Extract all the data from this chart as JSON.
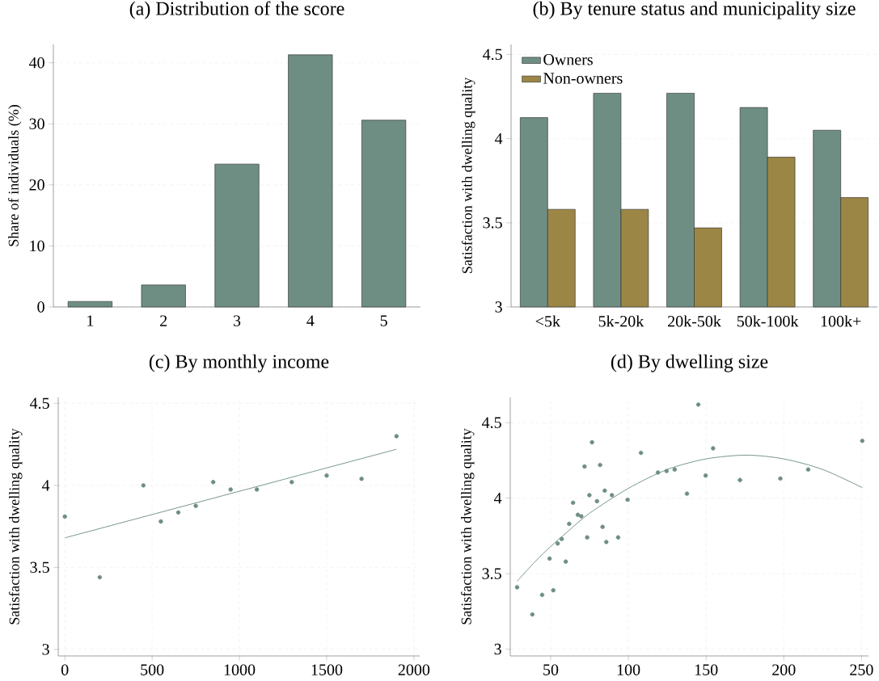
{
  "chart_data": [
    {
      "type": "bar",
      "title": "(a) Distribution of the score",
      "ylabel": "Share of individuals (%)",
      "categories": [
        "1",
        "2",
        "3",
        "4",
        "5"
      ],
      "values": [
        0.9,
        3.6,
        23.4,
        41.3,
        30.6
      ],
      "color": "#6e8e84",
      "ylim": [
        0,
        43
      ],
      "yticks": [
        0,
        10,
        20,
        30,
        40
      ],
      "grid": "y"
    },
    {
      "type": "bar",
      "title": "(b) By tenure status and municipality size",
      "ylabel": "Satisfaction with dwelling quality",
      "categories": [
        "<5k",
        "5k-20k",
        "20k-50k",
        "50k-100k",
        "100k+"
      ],
      "series": [
        {
          "name": "Owners",
          "color": "#6e8e84",
          "values": [
            4.125,
            4.27,
            4.27,
            4.185,
            4.05
          ]
        },
        {
          "name": "Non-owners",
          "color": "#9c8645",
          "values": [
            3.58,
            3.58,
            3.47,
            3.89,
            3.65
          ]
        }
      ],
      "ylim": [
        3,
        4.56
      ],
      "yticks": [
        3,
        3.5,
        4,
        4.5
      ],
      "grid": "y",
      "legend": "top left"
    },
    {
      "type": "scatter",
      "title": "(c) By monthly income",
      "ylabel": "Satisfaction with dwelling quality",
      "series": [
        {
          "type": "scatter",
          "marker": "circle",
          "color": "#6e8e84",
          "x": [
            0,
            200,
            450,
            550,
            650,
            750,
            850,
            950,
            1100,
            1300,
            1500,
            1700,
            1900
          ],
          "values": [
            3.81,
            3.44,
            4.0,
            3.78,
            3.835,
            3.875,
            4.02,
            3.975,
            3.975,
            4.02,
            4.06,
            4.04,
            4.3
          ]
        },
        {
          "type": "line",
          "marker": "none",
          "color": "#6e8e84",
          "x": [
            0,
            1900
          ],
          "values": [
            3.68,
            4.22
          ]
        }
      ],
      "xlim": [
        -38,
        2033
      ],
      "ylim": [
        2.96,
        4.536
      ],
      "xticks": [
        0,
        500,
        1000,
        1500,
        2000
      ],
      "yticks": [
        3,
        3.5,
        4,
        4.5
      ],
      "grid": true
    },
    {
      "type": "scatter",
      "title": "(d) By dwelling size",
      "ylabel": "Satisfaction with dwelling quality",
      "series": [
        {
          "type": "scatter",
          "marker": "circle",
          "color": "#6e8e84",
          "x": [
            28.4,
            38.2,
            44.5,
            49.3,
            51.7,
            54.5,
            57.1,
            59.7,
            61.9,
            64.4,
            67.5,
            69.7,
            71.8,
            73.5,
            74.9,
            76.6,
            79.8,
            81.8,
            83.4,
            84.8,
            85.8,
            89.4,
            93.4,
            99.5,
            108.1,
            119.0,
            124.6,
            129.8,
            137.7,
            145.0,
            149.7,
            154.5,
            171.8,
            197.8,
            215.7,
            250.5
          ],
          "values": [
            3.41,
            3.23,
            3.36,
            3.6,
            3.39,
            3.7,
            3.73,
            3.58,
            3.83,
            3.97,
            3.89,
            3.88,
            4.21,
            3.74,
            4.02,
            4.37,
            3.98,
            4.22,
            3.81,
            4.05,
            3.71,
            4.02,
            3.74,
            3.99,
            4.3,
            4.17,
            4.18,
            4.19,
            4.03,
            4.62,
            4.15,
            4.33,
            4.12,
            4.13,
            4.19,
            4.38
          ]
        },
        {
          "type": "line",
          "marker": "none",
          "color": "#6e8e84",
          "x": [
            28.4,
            40,
            50,
            60,
            75,
            100,
            125,
            150,
            176,
            200,
            225,
            250.5
          ],
          "values": [
            3.45,
            3.58,
            3.68,
            3.77,
            3.9,
            4.065,
            4.19,
            4.26,
            4.285,
            4.26,
            4.19,
            4.07
          ]
        }
      ],
      "xlim": [
        24,
        254.5
      ],
      "ylim": [
        2.955,
        4.667
      ],
      "xticks": [
        50,
        100,
        150,
        200,
        250
      ],
      "yticks": [
        3,
        3.5,
        4,
        4.5
      ],
      "grid": true
    }
  ]
}
